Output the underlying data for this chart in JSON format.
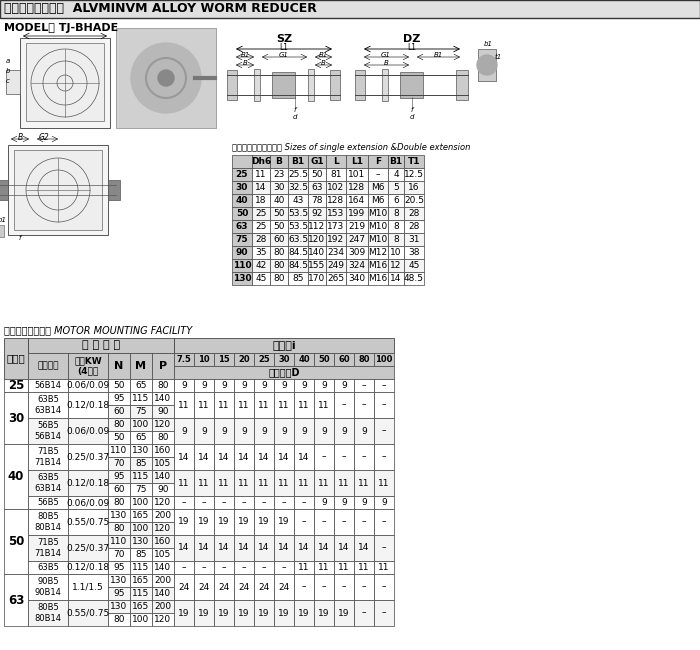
{
  "title": "魋合金輸輪減速機  ALVMINVM ALLOY WORM REDUCER",
  "model_label": "MODEL： TJ-BHADE",
  "subtitle": "單向、雙向輸出軸尺寸 Sizes of single extension &Double extension",
  "lower_label": "安裝規格軸心尺寸 MOTOR MOUNTING FACILITY",
  "upper_headers": [
    "",
    "Dh6",
    "B",
    "B1",
    "G1",
    "L",
    "L1",
    "F",
    "B1",
    "T1"
  ],
  "upper_rows": [
    [
      "25",
      "11",
      "23",
      "25.5",
      "50",
      "81",
      "101",
      "–",
      "4",
      "12.5"
    ],
    [
      "30",
      "14",
      "30",
      "32.5",
      "63",
      "102",
      "128",
      "M6",
      "5",
      "16"
    ],
    [
      "40",
      "18",
      "40",
      "43",
      "78",
      "128",
      "164",
      "M6",
      "6",
      "20.5"
    ],
    [
      "50",
      "25",
      "50",
      "53.5",
      "92",
      "153",
      "199",
      "M10",
      "8",
      "28"
    ],
    [
      "63",
      "25",
      "50",
      "53.5",
      "112",
      "173",
      "219",
      "M10",
      "8",
      "28"
    ],
    [
      "75",
      "28",
      "60",
      "63.5",
      "120",
      "192",
      "247",
      "M10",
      "8",
      "31"
    ],
    [
      "90",
      "35",
      "80",
      "84.5",
      "140",
      "234",
      "309",
      "M12",
      "10",
      "38"
    ],
    [
      "110",
      "42",
      "80",
      "84.5",
      "155",
      "249",
      "324",
      "M16",
      "12",
      "45"
    ],
    [
      "130",
      "45",
      "80",
      "85",
      "170",
      "265",
      "340",
      "M16",
      "14",
      "48.5"
    ]
  ],
  "bg_header": "#c8c8c8",
  "bg_white": "#ffffff",
  "bg_light": "#f4f4f4",
  "border_color": "#444444",
  "groups": [
    {
      "label": "25",
      "sub_rows": [
        {
          "flan": "56B14",
          "kw": "0.06/0.09",
          "nmps": [
            [
              "50",
              "65",
              "80"
            ]
          ],
          "vals": [
            "9",
            "9",
            "9",
            "9",
            "9",
            "9",
            "9",
            "9",
            "9",
            "–",
            "–"
          ]
        }
      ]
    },
    {
      "label": "30",
      "sub_rows": [
        {
          "flan": "63B5\n63B14",
          "kw": "0.12/0.18",
          "nmps": [
            [
              "95",
              "115",
              "140"
            ],
            [
              "60",
              "75",
              "90"
            ]
          ],
          "vals": [
            "11",
            "11",
            "11",
            "11",
            "11",
            "11",
            "11",
            "11",
            "–",
            "–",
            "–"
          ]
        },
        {
          "flan": "56B5\n56B14",
          "kw": "0.06/0.09",
          "nmps": [
            [
              "80",
              "100",
              "120"
            ],
            [
              "50",
              "65",
              "80"
            ]
          ],
          "vals": [
            "9",
            "9",
            "9",
            "9",
            "9",
            "9",
            "9",
            "9",
            "9",
            "9",
            "–"
          ]
        }
      ]
    },
    {
      "label": "40",
      "sub_rows": [
        {
          "flan": "71B5\n71B14",
          "kw": "0.25/0.37",
          "nmps": [
            [
              "110",
              "130",
              "160"
            ],
            [
              "70",
              "85",
              "105"
            ]
          ],
          "vals": [
            "14",
            "14",
            "14",
            "14",
            "14",
            "14",
            "14",
            "–",
            "–",
            "–",
            "–"
          ]
        },
        {
          "flan": "63B5\n63B14",
          "kw": "0.12/0.18",
          "nmps": [
            [
              "95",
              "115",
              "140"
            ],
            [
              "60",
              "75",
              "90"
            ]
          ],
          "vals": [
            "11",
            "11",
            "11",
            "11",
            "11",
            "11",
            "11",
            "11",
            "11",
            "11",
            "11"
          ]
        },
        {
          "flan": "56B5",
          "kw": "0.06/0.09",
          "nmps": [
            [
              "80",
              "100",
              "120"
            ]
          ],
          "vals": [
            "–",
            "–",
            "–",
            "–",
            "–",
            "–",
            "–",
            "9",
            "9",
            "9",
            "9"
          ]
        }
      ]
    },
    {
      "label": "50",
      "sub_rows": [
        {
          "flan": "80B5\n80B14",
          "kw": "0.55/0.75",
          "nmps": [
            [
              "130",
              "165",
              "200"
            ],
            [
              "80",
              "100",
              "120"
            ]
          ],
          "vals": [
            "19",
            "19",
            "19",
            "19",
            "19",
            "19",
            "–",
            "–",
            "–",
            "–",
            "–"
          ]
        },
        {
          "flan": "71B5\n71B14",
          "kw": "0.25/0.37",
          "nmps": [
            [
              "110",
              "130",
              "160"
            ],
            [
              "70",
              "85",
              "105"
            ]
          ],
          "vals": [
            "14",
            "14",
            "14",
            "14",
            "14",
            "14",
            "14",
            "14",
            "14",
            "14",
            "–"
          ]
        },
        {
          "flan": "63B5",
          "kw": "0.12/0.18",
          "nmps": [
            [
              "95",
              "115",
              "140"
            ]
          ],
          "vals": [
            "–",
            "–",
            "–",
            "–",
            "–",
            "–",
            "11",
            "11",
            "11",
            "11",
            "11"
          ]
        }
      ]
    },
    {
      "label": "63",
      "sub_rows": [
        {
          "flan": "90B5\n90B14",
          "kw": "1.1/1.5",
          "nmps": [
            [
              "130",
              "165",
              "200"
            ],
            [
              "95",
              "115",
              "140"
            ]
          ],
          "vals": [
            "24",
            "24",
            "24",
            "24",
            "24",
            "24",
            "–",
            "–",
            "–",
            "–",
            "–"
          ]
        },
        {
          "flan": "80B5\n80B14",
          "kw": "0.55/0.75",
          "nmps": [
            [
              "130",
              "165",
              "200"
            ],
            [
              "80",
              "100",
              "120"
            ]
          ],
          "vals": [
            "19",
            "19",
            "19",
            "19",
            "19",
            "19",
            "19",
            "19",
            "19",
            "–",
            "–"
          ]
        }
      ]
    }
  ]
}
